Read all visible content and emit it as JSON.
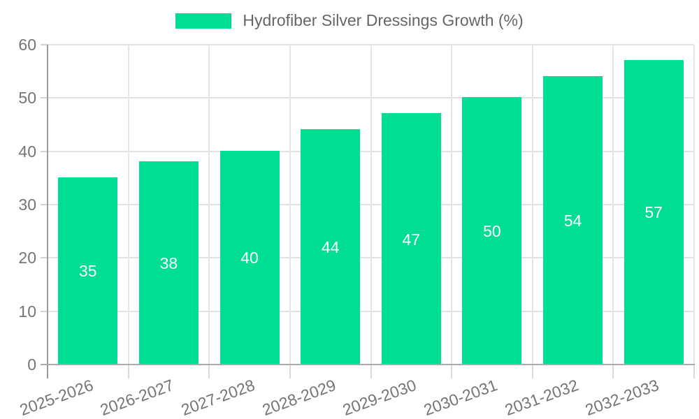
{
  "chart_data": {
    "type": "bar",
    "title": "Hydrofiber Silver Dressings Growth (%)",
    "series_name": "Hydrofiber Silver Dressings Growth (%)",
    "categories": [
      "2025-2026",
      "2026-2027",
      "2027-2028",
      "2028-2029",
      "2029-2030",
      "2030-2031",
      "2031-2032",
      "2032-2033"
    ],
    "values": [
      35,
      38,
      40,
      44,
      47,
      50,
      54,
      57
    ],
    "data_labels": [
      "35",
      "38",
      "40",
      "44",
      "47",
      "50",
      "54",
      "57"
    ],
    "xlabel": "",
    "ylabel": "",
    "ylim": [
      0,
      60
    ],
    "yticks": [
      0,
      10,
      20,
      30,
      40,
      50,
      60
    ],
    "grid": true,
    "legend_position": "top",
    "bar_color": "#00DE93",
    "data_label_color": "#ffffff",
    "axis_text_color": "#757575",
    "legend_text_color": "#666666"
  }
}
